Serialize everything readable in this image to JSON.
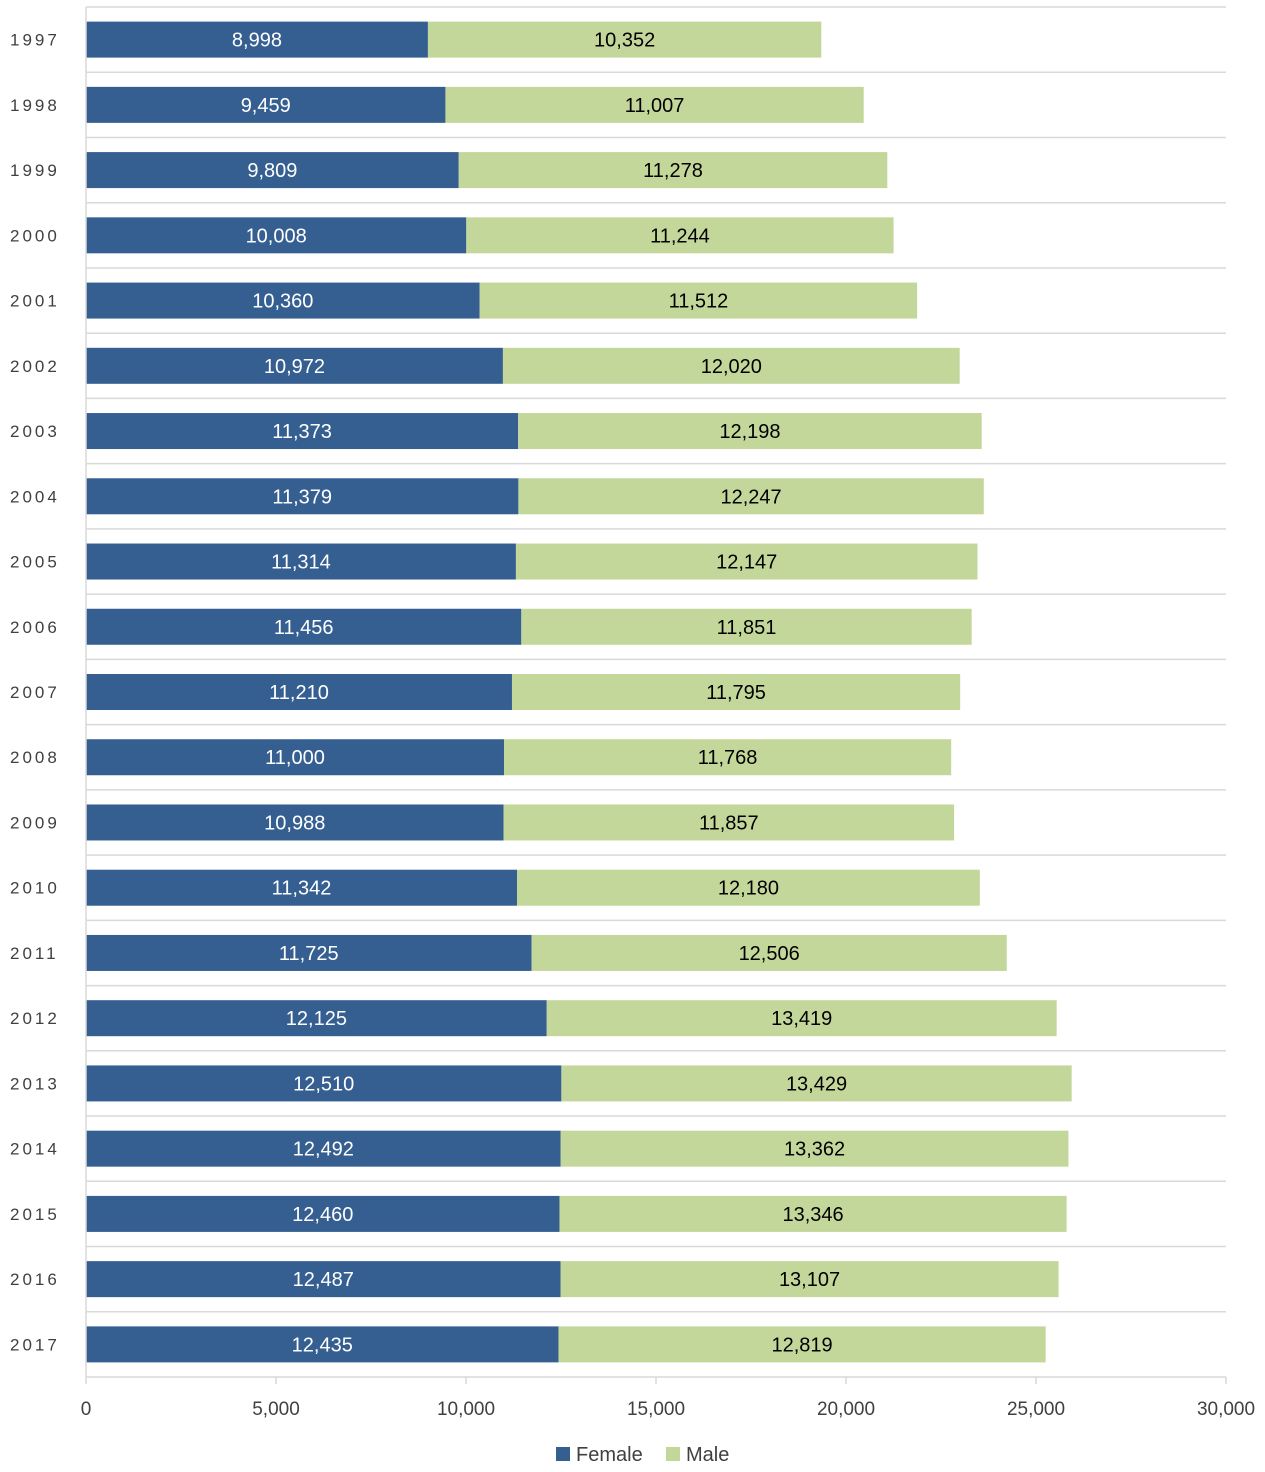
{
  "chart_data": {
    "type": "bar",
    "orientation": "horizontal",
    "stacked": true,
    "categories": [
      "1997",
      "1998",
      "1999",
      "2000",
      "2001",
      "2002",
      "2003",
      "2004",
      "2005",
      "2006",
      "2007",
      "2008",
      "2009",
      "2010",
      "2011",
      "2012",
      "2013",
      "2014",
      "2015",
      "2016",
      "2017"
    ],
    "series": [
      {
        "name": "Female",
        "color": "#365f91",
        "label_color": "#ffffff",
        "values": [
          8998,
          9459,
          9809,
          10008,
          10360,
          10972,
          11373,
          11379,
          11314,
          11456,
          11210,
          11000,
          10988,
          11342,
          11725,
          12125,
          12510,
          12492,
          12460,
          12487,
          12435
        ],
        "labels": [
          "8,998",
          "9,459",
          "9,809",
          "10,008",
          "10,360",
          "10,972",
          "11,373",
          "11,379",
          "11,314",
          "11,456",
          "11,210",
          "11,000",
          "10,988",
          "11,342",
          "11,725",
          "12,125",
          "12,510",
          "12,492",
          "12,460",
          "12,487",
          "12,435"
        ]
      },
      {
        "name": "Male",
        "color": "#c4d79b",
        "label_color": "#000000",
        "values": [
          10352,
          11007,
          11278,
          11244,
          11512,
          12020,
          12198,
          12247,
          12147,
          11851,
          11795,
          11768,
          11857,
          12180,
          12506,
          13419,
          13429,
          13362,
          13346,
          13107,
          12819
        ],
        "labels": [
          "10,352",
          "11,007",
          "11,278",
          "11,244",
          "11,512",
          "12,020",
          "12,198",
          "12,247",
          "12,147",
          "11,851",
          "11,795",
          "11,768",
          "11,857",
          "12,180",
          "12,506",
          "13,419",
          "13,429",
          "13,362",
          "13,346",
          "13,107",
          "12,819"
        ]
      }
    ],
    "xlim": [
      0,
      30000
    ],
    "x_ticks": [
      0,
      5000,
      10000,
      15000,
      20000,
      25000,
      30000
    ],
    "x_tick_labels": [
      "0",
      "5,000",
      "10,000",
      "15,000",
      "20,000",
      "25,000",
      "30,000"
    ],
    "grid": "horizontal-category-separators",
    "legend": {
      "position": "bottom",
      "entries": [
        "Female",
        "Male"
      ]
    },
    "title": "",
    "xlabel": "",
    "ylabel": ""
  }
}
